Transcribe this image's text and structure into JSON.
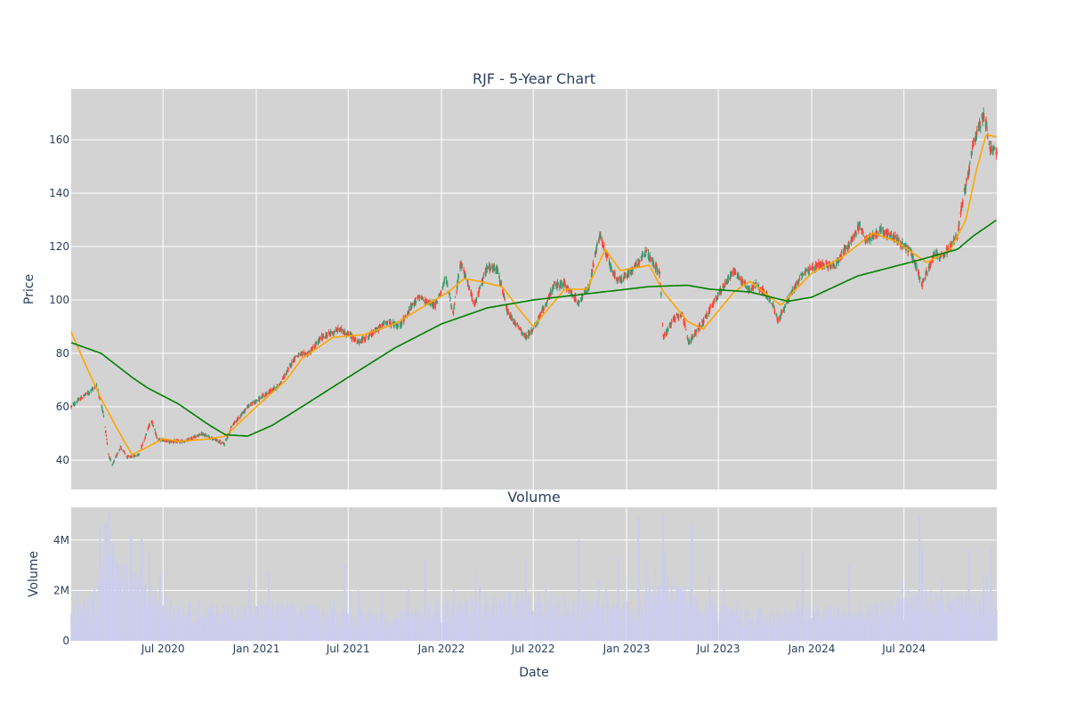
{
  "chart_data": [
    {
      "type": "candlestick",
      "title": "RJF - 5-Year Chart",
      "ylabel": "Price",
      "ylim": [
        29,
        179
      ],
      "yticks": [
        40,
        60,
        80,
        100,
        120,
        140,
        160
      ],
      "date_range": [
        "2020-01-02",
        "2024-12-31"
      ],
      "colors": {
        "up": "#3d9970",
        "down": "#ff4136",
        "ma_short": "#ffa500",
        "ma_long": "#008000",
        "plot_bg": "#d3d3d3",
        "grid": "#ffffff"
      },
      "price_path": [
        [
          "2020-01-02",
          60
        ],
        [
          "2020-01-20",
          63
        ],
        [
          "2020-02-10",
          66
        ],
        [
          "2020-02-21",
          68
        ],
        [
          "2020-03-05",
          58
        ],
        [
          "2020-03-16",
          42
        ],
        [
          "2020-03-23",
          38
        ],
        [
          "2020-04-08",
          45
        ],
        [
          "2020-04-22",
          41
        ],
        [
          "2020-05-14",
          42
        ],
        [
          "2020-06-08",
          55
        ],
        [
          "2020-06-20",
          48
        ],
        [
          "2020-07-15",
          47
        ],
        [
          "2020-08-15",
          47
        ],
        [
          "2020-09-15",
          50
        ],
        [
          "2020-10-30",
          46
        ],
        [
          "2020-11-15",
          53
        ],
        [
          "2020-12-15",
          60
        ],
        [
          "2021-01-15",
          64
        ],
        [
          "2021-02-15",
          68
        ],
        [
          "2021-03-20",
          79
        ],
        [
          "2021-04-15",
          80
        ],
        [
          "2021-05-10",
          86
        ],
        [
          "2021-06-15",
          89
        ],
        [
          "2021-07-10",
          86
        ],
        [
          "2021-07-20",
          84
        ],
        [
          "2021-08-15",
          87
        ],
        [
          "2021-09-15",
          92
        ],
        [
          "2021-10-10",
          90
        ],
        [
          "2021-11-15",
          101
        ],
        [
          "2021-12-20",
          98
        ],
        [
          "2022-01-10",
          108
        ],
        [
          "2022-01-24",
          95
        ],
        [
          "2022-02-08",
          114
        ],
        [
          "2022-03-08",
          98
        ],
        [
          "2022-03-31",
          112
        ],
        [
          "2022-04-20",
          112
        ],
        [
          "2022-05-12",
          95
        ],
        [
          "2022-06-16",
          86
        ],
        [
          "2022-07-05",
          90
        ],
        [
          "2022-08-10",
          105
        ],
        [
          "2022-09-01",
          106
        ],
        [
          "2022-09-28",
          99
        ],
        [
          "2022-10-20",
          105
        ],
        [
          "2022-11-01",
          118
        ],
        [
          "2022-11-10",
          124
        ],
        [
          "2022-12-05",
          110
        ],
        [
          "2022-12-20",
          107
        ],
        [
          "2023-01-15",
          112
        ],
        [
          "2023-02-08",
          118
        ],
        [
          "2023-03-08",
          110
        ],
        [
          "2023-03-14",
          86
        ],
        [
          "2023-04-05",
          93
        ],
        [
          "2023-04-20",
          95
        ],
        [
          "2023-05-04",
          84
        ],
        [
          "2023-06-01",
          92
        ],
        [
          "2023-07-01",
          102
        ],
        [
          "2023-07-31",
          111
        ],
        [
          "2023-08-30",
          104
        ],
        [
          "2023-09-15",
          106
        ],
        [
          "2023-10-15",
          99
        ],
        [
          "2023-10-27",
          92
        ],
        [
          "2023-11-15",
          100
        ],
        [
          "2023-12-15",
          110
        ],
        [
          "2024-01-15",
          113
        ],
        [
          "2024-02-15",
          113
        ],
        [
          "2024-03-15",
          121
        ],
        [
          "2024-04-05",
          128
        ],
        [
          "2024-04-16",
          122
        ],
        [
          "2024-05-15",
          126
        ],
        [
          "2024-06-15",
          123
        ],
        [
          "2024-07-15",
          118
        ],
        [
          "2024-08-05",
          106
        ],
        [
          "2024-08-30",
          117
        ],
        [
          "2024-09-15",
          116
        ],
        [
          "2024-10-15",
          124
        ],
        [
          "2024-10-24",
          137
        ],
        [
          "2024-11-06",
          148
        ],
        [
          "2024-11-15",
          159
        ],
        [
          "2024-12-06",
          170
        ],
        [
          "2024-12-18",
          157
        ],
        [
          "2024-12-31",
          155
        ]
      ],
      "ma_short_path": [
        [
          "2020-01-02",
          88
        ],
        [
          "2020-02-01",
          75
        ],
        [
          "2020-03-01",
          63
        ],
        [
          "2020-04-01",
          52
        ],
        [
          "2020-05-01",
          42
        ],
        [
          "2020-06-01",
          45
        ],
        [
          "2020-07-01",
          48
        ],
        [
          "2020-08-01",
          47
        ],
        [
          "2020-10-01",
          48
        ],
        [
          "2020-11-01",
          49
        ],
        [
          "2021-01-01",
          60
        ],
        [
          "2021-03-01",
          70
        ],
        [
          "2021-04-01",
          78
        ],
        [
          "2021-06-01",
          86
        ],
        [
          "2021-08-01",
          87
        ],
        [
          "2021-10-01",
          91
        ],
        [
          "2021-12-01",
          98
        ],
        [
          "2022-01-15",
          103
        ],
        [
          "2022-02-15",
          108
        ],
        [
          "2022-03-15",
          107
        ],
        [
          "2022-05-01",
          105
        ],
        [
          "2022-06-01",
          97
        ],
        [
          "2022-07-01",
          90
        ],
        [
          "2022-09-01",
          104
        ],
        [
          "2022-10-15",
          104
        ],
        [
          "2022-11-20",
          119
        ],
        [
          "2022-12-20",
          111
        ],
        [
          "2023-02-15",
          113
        ],
        [
          "2023-03-15",
          103
        ],
        [
          "2023-05-01",
          92
        ],
        [
          "2023-06-01",
          89
        ],
        [
          "2023-08-01",
          103
        ],
        [
          "2023-09-01",
          107
        ],
        [
          "2023-11-01",
          98
        ],
        [
          "2023-12-01",
          104
        ],
        [
          "2024-01-01",
          110
        ],
        [
          "2024-03-01",
          116
        ],
        [
          "2024-05-01",
          125
        ],
        [
          "2024-06-15",
          122
        ],
        [
          "2024-08-15",
          114
        ],
        [
          "2024-10-01",
          119
        ],
        [
          "2024-10-31",
          130
        ],
        [
          "2024-11-20",
          148
        ],
        [
          "2024-12-10",
          162
        ],
        [
          "2024-12-31",
          161
        ]
      ],
      "ma_long_path": [
        [
          "2020-01-02",
          84
        ],
        [
          "2020-03-01",
          80
        ],
        [
          "2020-05-01",
          71
        ],
        [
          "2020-06-01",
          67
        ],
        [
          "2020-08-01",
          61
        ],
        [
          "2020-10-01",
          53
        ],
        [
          "2020-11-01",
          49.5
        ],
        [
          "2020-12-15",
          49
        ],
        [
          "2021-02-01",
          53
        ],
        [
          "2021-04-01",
          60
        ],
        [
          "2021-07-01",
          71
        ],
        [
          "2021-10-01",
          82
        ],
        [
          "2022-01-01",
          91
        ],
        [
          "2022-04-01",
          97
        ],
        [
          "2022-07-01",
          100
        ],
        [
          "2022-10-01",
          102
        ],
        [
          "2023-01-01",
          104
        ],
        [
          "2023-02-15",
          105
        ],
        [
          "2023-05-01",
          105.5
        ],
        [
          "2023-06-15",
          104
        ],
        [
          "2023-09-01",
          103
        ],
        [
          "2023-11-15",
          99.5
        ],
        [
          "2024-01-01",
          101
        ],
        [
          "2024-04-01",
          109
        ],
        [
          "2024-08-01",
          115
        ],
        [
          "2024-10-15",
          119
        ],
        [
          "2024-11-15",
          124
        ],
        [
          "2024-12-31",
          130
        ]
      ]
    },
    {
      "type": "bar",
      "title": "Volume",
      "ylabel": "Volume",
      "xlabel": "Date",
      "ylim": [
        0,
        5300000
      ],
      "yticks": [
        0,
        2000000,
        4000000
      ],
      "ytick_labels": [
        "0",
        "2M",
        "4M"
      ],
      "xticks": [
        "2020-07-01",
        "2021-01-01",
        "2021-07-01",
        "2022-01-01",
        "2022-07-01",
        "2023-01-01",
        "2023-07-01",
        "2024-01-01",
        "2024-07-01"
      ],
      "xtick_labels": [
        "Jul 2020",
        "Jan 2021",
        "Jul 2021",
        "Jan 2022",
        "Jul 2022",
        "Jan 2023",
        "Jul 2023",
        "Jan 2024",
        "Jul 2024"
      ],
      "bar_color": "#ccccee",
      "volume_profile": [
        [
          "2020-01-02",
          1000000
        ],
        [
          "2020-02-15",
          1400000
        ],
        [
          "2020-03-15",
          3000000
        ],
        [
          "2020-04-15",
          2200000
        ],
        [
          "2020-06-01",
          1600000
        ],
        [
          "2020-08-01",
          1100000
        ],
        [
          "2020-11-01",
          1000000
        ],
        [
          "2021-02-01",
          1100000
        ],
        [
          "2021-06-01",
          950000
        ],
        [
          "2021-10-01",
          850000
        ],
        [
          "2022-02-01",
          1200000
        ],
        [
          "2022-06-01",
          1400000
        ],
        [
          "2022-10-01",
          1200000
        ],
        [
          "2023-01-15",
          1100000
        ],
        [
          "2023-03-15",
          2000000
        ],
        [
          "2023-05-15",
          1300000
        ],
        [
          "2023-08-01",
          900000
        ],
        [
          "2023-11-01",
          900000
        ],
        [
          "2024-02-01",
          1000000
        ],
        [
          "2024-05-01",
          1000000
        ],
        [
          "2024-08-01",
          1500000
        ],
        [
          "2024-10-01",
          1300000
        ],
        [
          "2024-12-31",
          1400000
        ]
      ],
      "volume_spikes": [
        [
          "2020-02-28",
          4500000
        ],
        [
          "2020-03-10",
          4700000
        ],
        [
          "2020-03-16",
          5100000
        ],
        [
          "2020-03-24",
          3900000
        ],
        [
          "2020-04-03",
          3000000
        ],
        [
          "2020-04-29",
          4200000
        ],
        [
          "2020-05-20",
          4100000
        ],
        [
          "2020-06-05",
          3600000
        ],
        [
          "2020-06-26",
          2700000
        ],
        [
          "2020-12-18",
          2600000
        ],
        [
          "2021-01-25",
          2700000
        ],
        [
          "2021-06-25",
          3000000
        ],
        [
          "2021-11-30",
          3200000
        ],
        [
          "2022-03-18",
          2200000
        ],
        [
          "2022-06-17",
          3300000
        ],
        [
          "2022-09-30",
          4000000
        ],
        [
          "2022-12-16",
          3300000
        ],
        [
          "2023-01-24",
          4900000
        ],
        [
          "2023-03-13",
          5000000
        ],
        [
          "2023-03-17",
          3500000
        ],
        [
          "2023-05-10",
          4600000
        ],
        [
          "2023-12-15",
          3500000
        ],
        [
          "2024-03-15",
          3000000
        ],
        [
          "2024-06-28",
          2500000
        ],
        [
          "2024-07-31",
          4900000
        ],
        [
          "2024-08-05",
          3600000
        ],
        [
          "2024-11-06",
          3600000
        ],
        [
          "2024-12-06",
          2700000
        ],
        [
          "2024-12-20",
          3700000
        ]
      ]
    }
  ]
}
